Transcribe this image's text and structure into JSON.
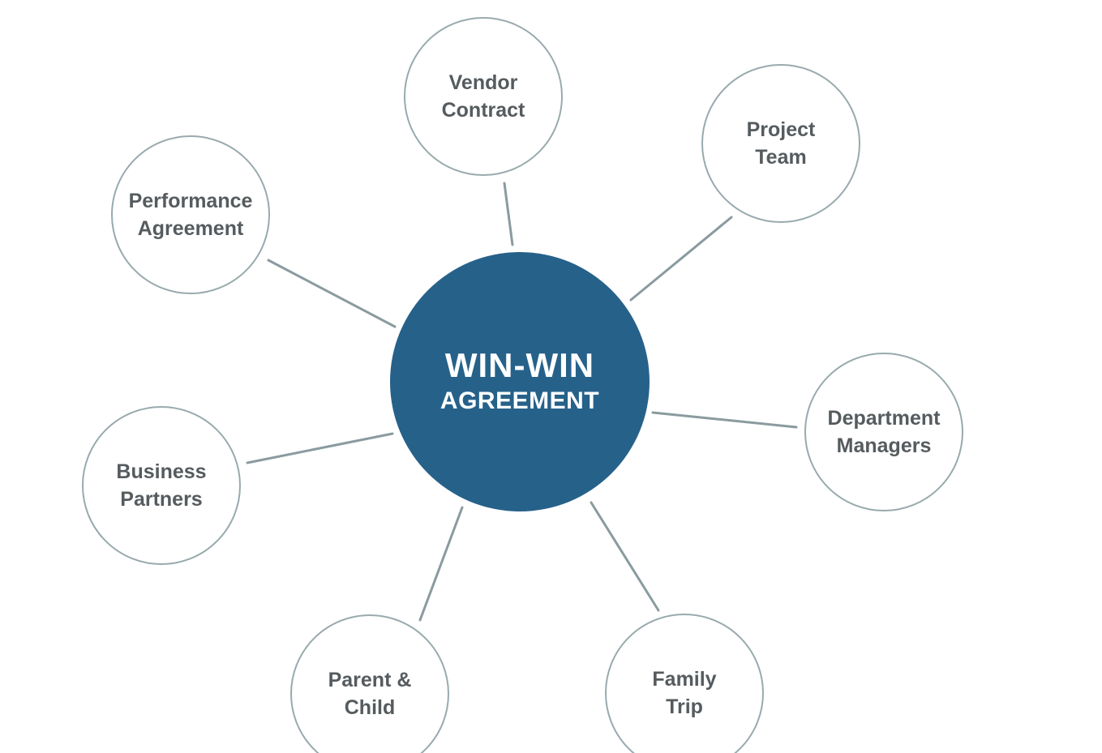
{
  "hub": {
    "title": "WIN-WIN",
    "subtitle": "AGREEMENT"
  },
  "nodes": [
    {
      "lines": [
        "Vendor",
        "Contract"
      ]
    },
    {
      "lines": [
        "Project",
        "Team"
      ]
    },
    {
      "lines": [
        "Performance",
        "Agreement"
      ]
    },
    {
      "lines": [
        "Department",
        "Managers"
      ]
    },
    {
      "lines": [
        "Business",
        "Partners"
      ]
    },
    {
      "lines": [
        "Parent &",
        "Child"
      ]
    },
    {
      "lines": [
        "Family",
        "Trip"
      ]
    }
  ],
  "colors": {
    "hub_fill": "#26618a",
    "node_border": "#98aaad",
    "node_text": "#555b5e",
    "connector": "#8a9b9f"
  }
}
